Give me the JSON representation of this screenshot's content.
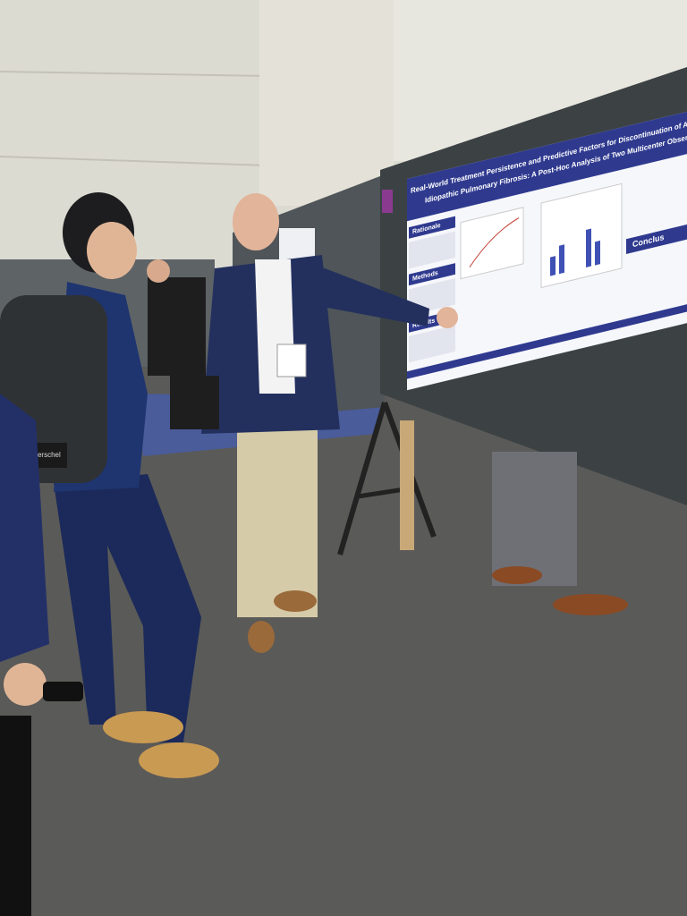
{
  "poster": {
    "title_line_1": "Real-World Treatment Persistence and Predictive Factors for Discontinuation of Antifibrotic Therapies i",
    "title_line_2": "Idiopathic Pulmonary Fibrosis: A Post-Hoc Analysis of Two Multicenter Observational Cohort Studie",
    "sections": [
      "Rationale",
      "Methods",
      "Results"
    ],
    "conclusion_header": "Conclus"
  },
  "bag": {
    "brand": "Herschel"
  }
}
